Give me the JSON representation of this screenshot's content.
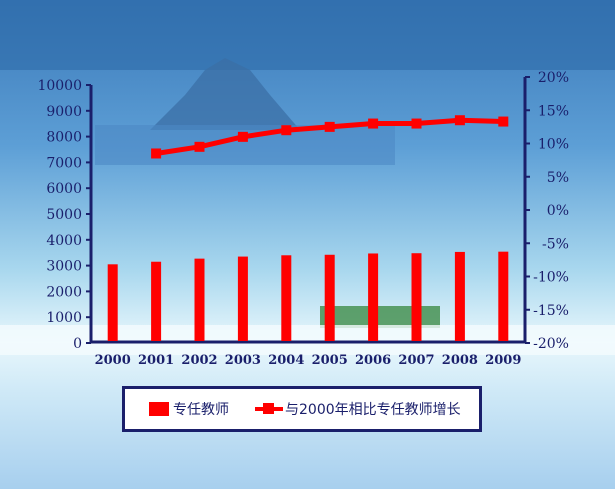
{
  "colors": {
    "bar": "#ff0000",
    "line": "#ff0000",
    "axis": "#1a1f6b"
  },
  "chart_data": {
    "type": "bar+line",
    "categories": [
      "2000",
      "2001",
      "2002",
      "2003",
      "2004",
      "2005",
      "2006",
      "2007",
      "2008",
      "2009"
    ],
    "y_left": {
      "ylim": [
        0,
        10000
      ],
      "ticks": [
        "0",
        "1000",
        "2000",
        "3000",
        "4000",
        "5000",
        "6000",
        "7000",
        "8000",
        "9000",
        "10000"
      ]
    },
    "y_right": {
      "ylim": [
        -20,
        20
      ],
      "unit": "%",
      "ticks": [
        "-20%",
        "-15%",
        "-10%",
        "-5%",
        "0%",
        "5%",
        "10%",
        "15%",
        "20%"
      ]
    },
    "series": [
      {
        "name": "专任教师",
        "type": "bar",
        "axis": "left",
        "values": [
          3050,
          3150,
          3270,
          3350,
          3400,
          3420,
          3470,
          3480,
          3530,
          3540
        ]
      },
      {
        "name": "与2000年相比专任教师增长",
        "type": "line",
        "axis": "right",
        "x": [
          "2001",
          "2002",
          "2003",
          "2004",
          "2005",
          "2006",
          "2007",
          "2008",
          "2009"
        ],
        "values": [
          8.5,
          9.5,
          11,
          12,
          12.5,
          13,
          13,
          13.5,
          13.3
        ]
      }
    ],
    "legend_position": "bottom"
  }
}
